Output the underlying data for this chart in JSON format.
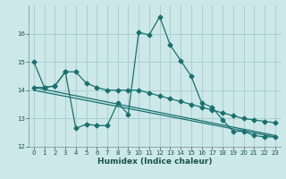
{
  "xlabel": "Humidex (Indice chaleur)",
  "background_color": "#cce8e8",
  "grid_color": "#aad0d0",
  "line_color": "#1a7070",
  "xlim": [
    -0.5,
    23.5
  ],
  "ylim": [
    12,
    17
  ],
  "yticks": [
    12,
    13,
    14,
    15,
    16
  ],
  "xticks": [
    0,
    1,
    2,
    3,
    4,
    5,
    6,
    7,
    8,
    9,
    10,
    11,
    12,
    13,
    14,
    15,
    16,
    17,
    18,
    19,
    20,
    21,
    22,
    23
  ],
  "series1_x": [
    0,
    1,
    2,
    3,
    4,
    5,
    6,
    7,
    8,
    9,
    10,
    11,
    12,
    13,
    14,
    15,
    16,
    17,
    18,
    19,
    20,
    21,
    22,
    23
  ],
  "series1_y": [
    15.0,
    14.1,
    14.15,
    14.65,
    12.65,
    12.8,
    12.75,
    12.75,
    13.55,
    13.15,
    16.05,
    15.95,
    16.6,
    15.6,
    15.05,
    14.5,
    13.55,
    13.4,
    12.95,
    12.55,
    12.55,
    12.4,
    12.35,
    12.35
  ],
  "series2_x": [
    0,
    1,
    2,
    3,
    4,
    5,
    6,
    7,
    8,
    9,
    10,
    11,
    12,
    13,
    14,
    15,
    16,
    17,
    18,
    19,
    20,
    21,
    22,
    23
  ],
  "series2_y": [
    14.1,
    14.1,
    14.15,
    14.65,
    14.65,
    14.25,
    14.1,
    14.0,
    14.0,
    14.0,
    14.0,
    13.9,
    13.8,
    13.7,
    13.6,
    13.5,
    13.4,
    13.3,
    13.2,
    13.1,
    13.0,
    12.95,
    12.9,
    12.85
  ],
  "series3_x": [
    0,
    23
  ],
  "series3_y": [
    14.1,
    12.4
  ],
  "series4_x": [
    0,
    23
  ],
  "series4_y": [
    14.0,
    12.35
  ]
}
